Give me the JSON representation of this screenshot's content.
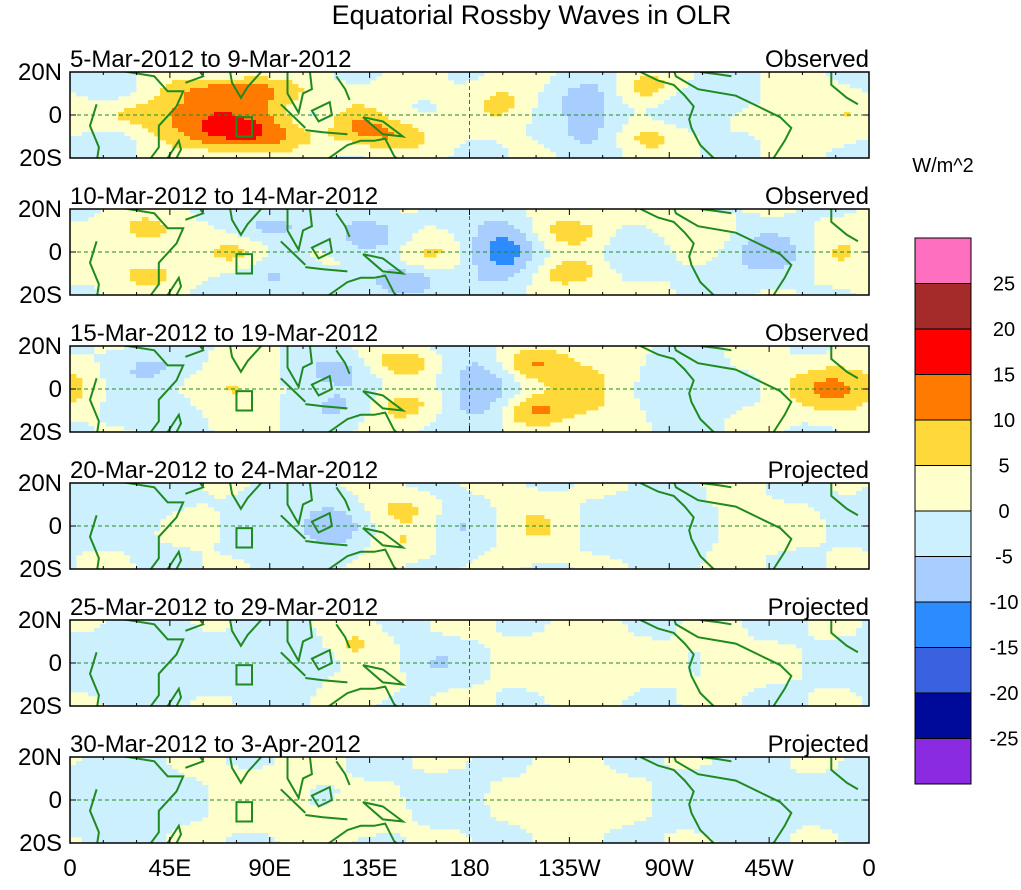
{
  "chart_data": {
    "type": "heatmap",
    "title": "Equatorial Rossby Waves in OLR",
    "variable": "OLR anomaly",
    "units": "W/m^2",
    "lat_ticks": [
      "20N",
      "0",
      "20S"
    ],
    "lon_ticks": [
      "0",
      "45E",
      "90E",
      "135E",
      "180",
      "135W",
      "90W",
      "45W",
      "0"
    ],
    "lon_range": [
      0,
      360
    ],
    "lat_range": [
      -20,
      20
    ],
    "colorbar": {
      "levels": [
        25,
        20,
        15,
        10,
        5,
        0,
        -5,
        -10,
        -15,
        -20,
        -25
      ],
      "colors": [
        "#ff6fbf",
        "#a52a2a",
        "#ff0000",
        "#ff7a00",
        "#ffd93a",
        "#ffffcc",
        "#cdf0ff",
        "#a8cdff",
        "#2c8cff",
        "#3a62e0",
        "#000a9a",
        "#8a2be2"
      ]
    },
    "panels": [
      {
        "dates": "5-Mar-2012 to 9-Mar-2012",
        "kind": "Observed",
        "anomalies": [
          {
            "lon": 65,
            "lat": 0,
            "sx": 38,
            "sy": 9,
            "v": 13
          },
          {
            "lon": 78,
            "lat": -10,
            "sx": 18,
            "sy": 5,
            "v": 10
          },
          {
            "lon": 75,
            "lat": 12,
            "sx": 18,
            "sy": 4,
            "v": 9
          },
          {
            "lon": 110,
            "lat": 0,
            "sx": 10,
            "sy": 6,
            "v": -7
          },
          {
            "lon": 130,
            "lat": -5,
            "sx": 10,
            "sy": 6,
            "v": 7
          },
          {
            "lon": 148,
            "lat": -10,
            "sx": 12,
            "sy": 5,
            "v": 8
          },
          {
            "lon": 20,
            "lat": 10,
            "sx": 14,
            "sy": 6,
            "v": -5
          },
          {
            "lon": 20,
            "lat": -10,
            "sx": 14,
            "sy": 6,
            "v": -5
          },
          {
            "lon": 195,
            "lat": 6,
            "sx": 10,
            "sy": 8,
            "v": 6
          },
          {
            "lon": 235,
            "lat": 8,
            "sx": 12,
            "sy": 7,
            "v": -8
          },
          {
            "lon": 235,
            "lat": -8,
            "sx": 12,
            "sy": 7,
            "v": -7
          },
          {
            "lon": 258,
            "lat": 12,
            "sx": 12,
            "sy": 6,
            "v": 8
          },
          {
            "lon": 258,
            "lat": -10,
            "sx": 12,
            "sy": 6,
            "v": 7
          },
          {
            "lon": 280,
            "lat": 5,
            "sx": 14,
            "sy": 8,
            "v": -4
          },
          {
            "lon": 340,
            "lat": 0,
            "sx": 14,
            "sy": 8,
            "v": 3
          }
        ]
      },
      {
        "dates": "10-Mar-2012 to 14-Mar-2012",
        "kind": "Observed",
        "anomalies": [
          {
            "lon": 35,
            "lat": 10,
            "sx": 14,
            "sy": 6,
            "v": 6
          },
          {
            "lon": 35,
            "lat": -10,
            "sx": 14,
            "sy": 6,
            "v": 6
          },
          {
            "lon": 90,
            "lat": 12,
            "sx": 12,
            "sy": 5,
            "v": -7
          },
          {
            "lon": 90,
            "lat": -12,
            "sx": 12,
            "sy": 5,
            "v": -6
          },
          {
            "lon": 75,
            "lat": 0,
            "sx": 10,
            "sy": 6,
            "v": 6
          },
          {
            "lon": 135,
            "lat": 8,
            "sx": 12,
            "sy": 7,
            "v": -8
          },
          {
            "lon": 150,
            "lat": -14,
            "sx": 10,
            "sy": 5,
            "v": -11
          },
          {
            "lon": 160,
            "lat": 0,
            "sx": 12,
            "sy": 6,
            "v": 6
          },
          {
            "lon": 195,
            "lat": 0,
            "sx": 12,
            "sy": 12,
            "v": -12
          },
          {
            "lon": 225,
            "lat": 10,
            "sx": 14,
            "sy": 6,
            "v": 8
          },
          {
            "lon": 225,
            "lat": -10,
            "sx": 14,
            "sy": 6,
            "v": 8
          },
          {
            "lon": 250,
            "lat": 0,
            "sx": 12,
            "sy": 10,
            "v": -4
          },
          {
            "lon": 285,
            "lat": 8,
            "sx": 12,
            "sy": 7,
            "v": 6
          },
          {
            "lon": 315,
            "lat": 0,
            "sx": 18,
            "sy": 9,
            "v": -8
          },
          {
            "lon": 345,
            "lat": 0,
            "sx": 12,
            "sy": 10,
            "v": 6
          }
        ]
      },
      {
        "dates": "15-Mar-2012 to 19-Mar-2012",
        "kind": "Observed",
        "anomalies": [
          {
            "lon": 35,
            "lat": 10,
            "sx": 12,
            "sy": 6,
            "v": -6
          },
          {
            "lon": 35,
            "lat": -10,
            "sx": 12,
            "sy": 6,
            "v": -5
          },
          {
            "lon": 75,
            "lat": 0,
            "sx": 10,
            "sy": 10,
            "v": 6
          },
          {
            "lon": 120,
            "lat": 8,
            "sx": 12,
            "sy": 6,
            "v": -7
          },
          {
            "lon": 120,
            "lat": -8,
            "sx": 12,
            "sy": 6,
            "v": -6
          },
          {
            "lon": 150,
            "lat": 12,
            "sx": 12,
            "sy": 5,
            "v": 8
          },
          {
            "lon": 150,
            "lat": -8,
            "sx": 12,
            "sy": 6,
            "v": 7
          },
          {
            "lon": 185,
            "lat": 0,
            "sx": 12,
            "sy": 14,
            "v": -9
          },
          {
            "lon": 210,
            "lat": 12,
            "sx": 12,
            "sy": 6,
            "v": 11
          },
          {
            "lon": 210,
            "lat": -10,
            "sx": 12,
            "sy": 6,
            "v": 11
          },
          {
            "lon": 240,
            "lat": 0,
            "sx": 12,
            "sy": 12,
            "v": 6
          },
          {
            "lon": 270,
            "lat": 0,
            "sx": 14,
            "sy": 12,
            "v": -3
          },
          {
            "lon": 345,
            "lat": 0,
            "sx": 16,
            "sy": 8,
            "v": 11
          }
        ]
      },
      {
        "dates": "20-Mar-2012 to 24-Mar-2012",
        "kind": "Projected",
        "anomalies": [
          {
            "lon": 20,
            "lat": 8,
            "sx": 20,
            "sy": 10,
            "v": -3
          },
          {
            "lon": 60,
            "lat": 0,
            "sx": 8,
            "sy": 5,
            "v": 5
          },
          {
            "lon": 90,
            "lat": 0,
            "sx": 14,
            "sy": 10,
            "v": -5
          },
          {
            "lon": 120,
            "lat": 0,
            "sx": 12,
            "sy": 10,
            "v": -7
          },
          {
            "lon": 148,
            "lat": 8,
            "sx": 14,
            "sy": 6,
            "v": 6
          },
          {
            "lon": 148,
            "lat": -8,
            "sx": 12,
            "sy": 6,
            "v": 5
          },
          {
            "lon": 175,
            "lat": 0,
            "sx": 10,
            "sy": 10,
            "v": -5
          },
          {
            "lon": 210,
            "lat": 0,
            "sx": 12,
            "sy": 10,
            "v": 5
          },
          {
            "lon": 255,
            "lat": 0,
            "sx": 18,
            "sy": 10,
            "v": -3
          },
          {
            "lon": 310,
            "lat": 0,
            "sx": 12,
            "sy": 6,
            "v": 4
          }
        ]
      },
      {
        "dates": "25-Mar-2012 to 29-Mar-2012",
        "kind": "Projected",
        "anomalies": [
          {
            "lon": 35,
            "lat": 0,
            "sx": 28,
            "sy": 12,
            "v": -3
          },
          {
            "lon": 100,
            "lat": 0,
            "sx": 14,
            "sy": 10,
            "v": -3
          },
          {
            "lon": 128,
            "lat": 8,
            "sx": 8,
            "sy": 6,
            "v": 6
          },
          {
            "lon": 130,
            "lat": -10,
            "sx": 10,
            "sy": 5,
            "v": 5
          },
          {
            "lon": 165,
            "lat": 0,
            "sx": 10,
            "sy": 6,
            "v": -5
          },
          {
            "lon": 230,
            "lat": 0,
            "sx": 22,
            "sy": 12,
            "v": 2
          },
          {
            "lon": 300,
            "lat": 0,
            "sx": 10,
            "sy": 6,
            "v": 3
          }
        ]
      },
      {
        "dates": "30-Mar-2012 to 3-Apr-2012",
        "kind": "Projected",
        "anomalies": [
          {
            "lon": 15,
            "lat": 0,
            "sx": 24,
            "sy": 12,
            "v": -3
          },
          {
            "lon": 85,
            "lat": 0,
            "sx": 16,
            "sy": 10,
            "v": 3
          },
          {
            "lon": 135,
            "lat": -8,
            "sx": 12,
            "sy": 6,
            "v": 3
          },
          {
            "lon": 170,
            "lat": 0,
            "sx": 12,
            "sy": 8,
            "v": -3
          },
          {
            "lon": 230,
            "lat": 0,
            "sx": 20,
            "sy": 10,
            "v": 2
          },
          {
            "lon": 290,
            "lat": 0,
            "sx": 18,
            "sy": 10,
            "v": -3
          }
        ]
      }
    ]
  }
}
